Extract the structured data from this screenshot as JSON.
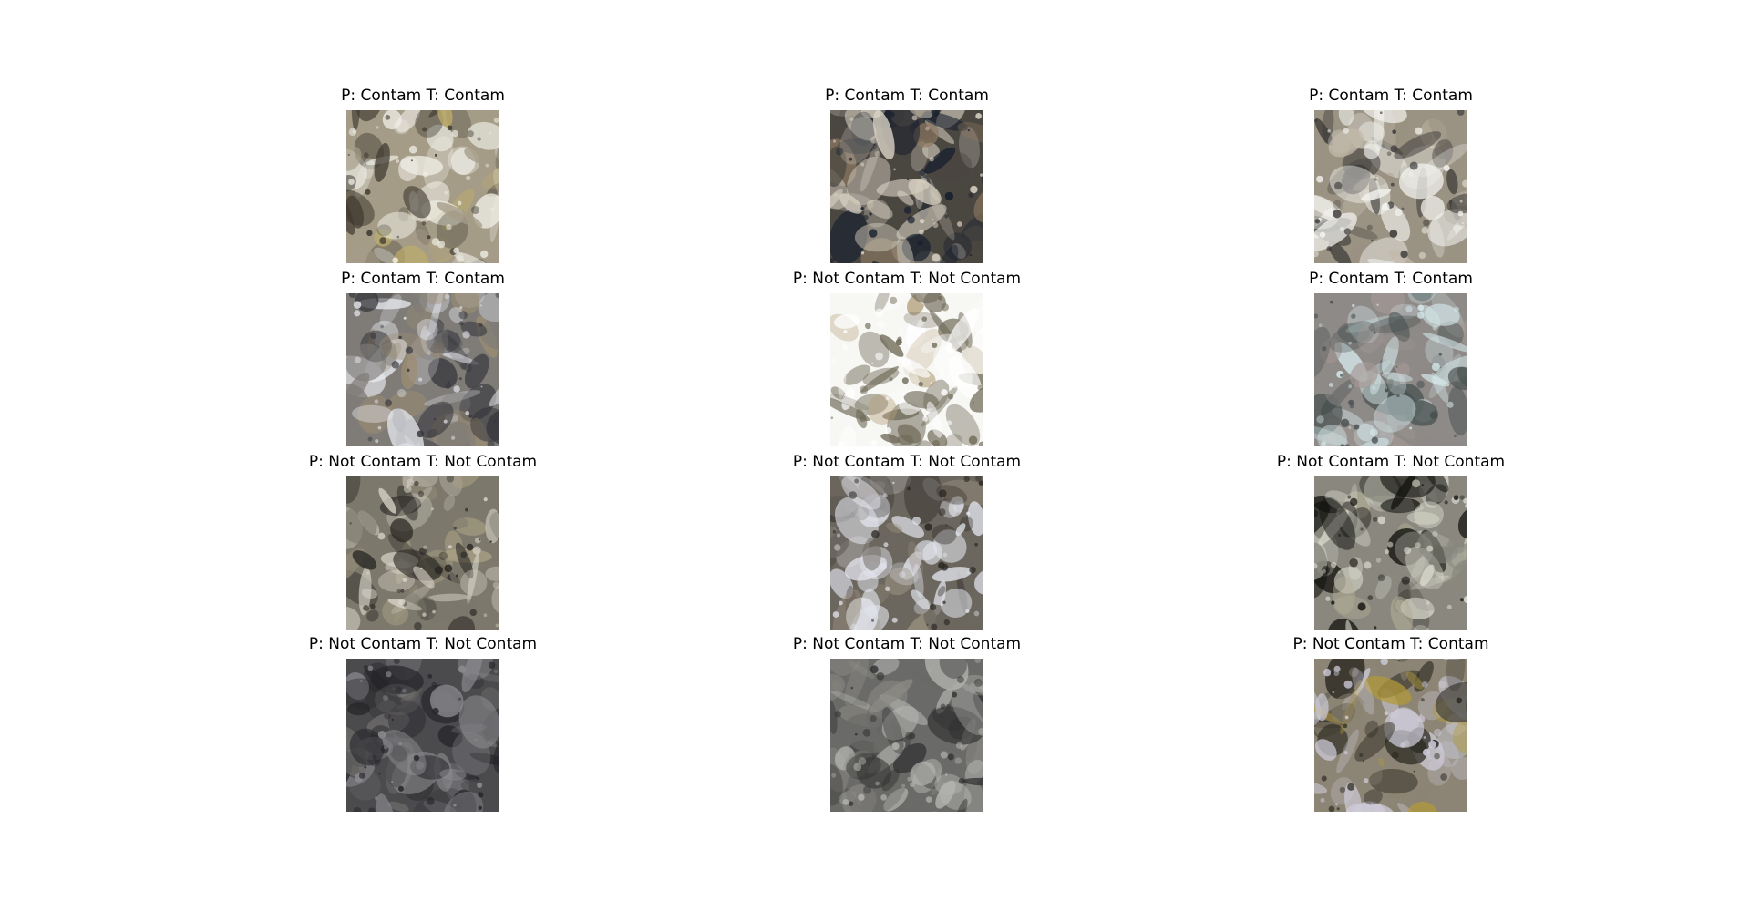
{
  "panels": [
    {
      "title": "P: Contam T: Contam",
      "image": {
        "base": "#a59c88",
        "dark": "#3f3a30",
        "light": "#efeee6",
        "accent": "#bfae6a"
      }
    },
    {
      "title": "P: Contam T: Contam",
      "image": {
        "base": "#4a4640",
        "dark": "#18202e",
        "light": "#d9d2c4",
        "accent": "#8f7b62"
      }
    },
    {
      "title": "P: Contam T: Contam",
      "image": {
        "base": "#9a9282",
        "dark": "#3c3a38",
        "light": "#f3f3ef",
        "accent": "#c1b8a8"
      }
    },
    {
      "title": "P: Contam T: Contam",
      "image": {
        "base": "#7f7c78",
        "dark": "#34343a",
        "light": "#e6e8ee",
        "accent": "#9c8c72"
      }
    },
    {
      "title": "P: Not Contam T: Not Contam",
      "image": {
        "base": "#f7f7f4",
        "dark": "#6f6a58",
        "light": "#ffffff",
        "accent": "#b4a07c"
      }
    },
    {
      "title": "P: Contam T: Contam",
      "image": {
        "base": "#8e8a88",
        "dark": "#47504f",
        "light": "#d4e6e8",
        "accent": "#a49894"
      }
    },
    {
      "title": "P: Not Contam T: Not Contam",
      "image": {
        "base": "#7c786c",
        "dark": "#2a2824",
        "light": "#d8d4c8",
        "accent": "#a89f84"
      }
    },
    {
      "title": "P: Not Contam T: Not Contam",
      "image": {
        "base": "#6b665e",
        "dark": "#2e2a26",
        "light": "#e2e4ec",
        "accent": "#9a907e"
      }
    },
    {
      "title": "P: Not Contam T: Not Contam",
      "image": {
        "base": "#8a887e",
        "dark": "#141410",
        "light": "#d8d8cc",
        "accent": "#b2ae9a"
      }
    },
    {
      "title": "P: Not Contam T: Not Contam",
      "image": {
        "base": "#4b4b4e",
        "dark": "#26262a",
        "light": "#8c8c90",
        "accent": "#6e6c6a"
      }
    },
    {
      "title": "P: Not Contam T: Not Contam",
      "image": {
        "base": "#6a6a68",
        "dark": "#333333",
        "light": "#b4b4b0",
        "accent": "#8c8a84"
      }
    },
    {
      "title": "P: Not Contam T: Contam",
      "image": {
        "base": "#8c8474",
        "dark": "#2a2820",
        "light": "#cdcbd8",
        "accent": "#b29a3a"
      }
    }
  ]
}
